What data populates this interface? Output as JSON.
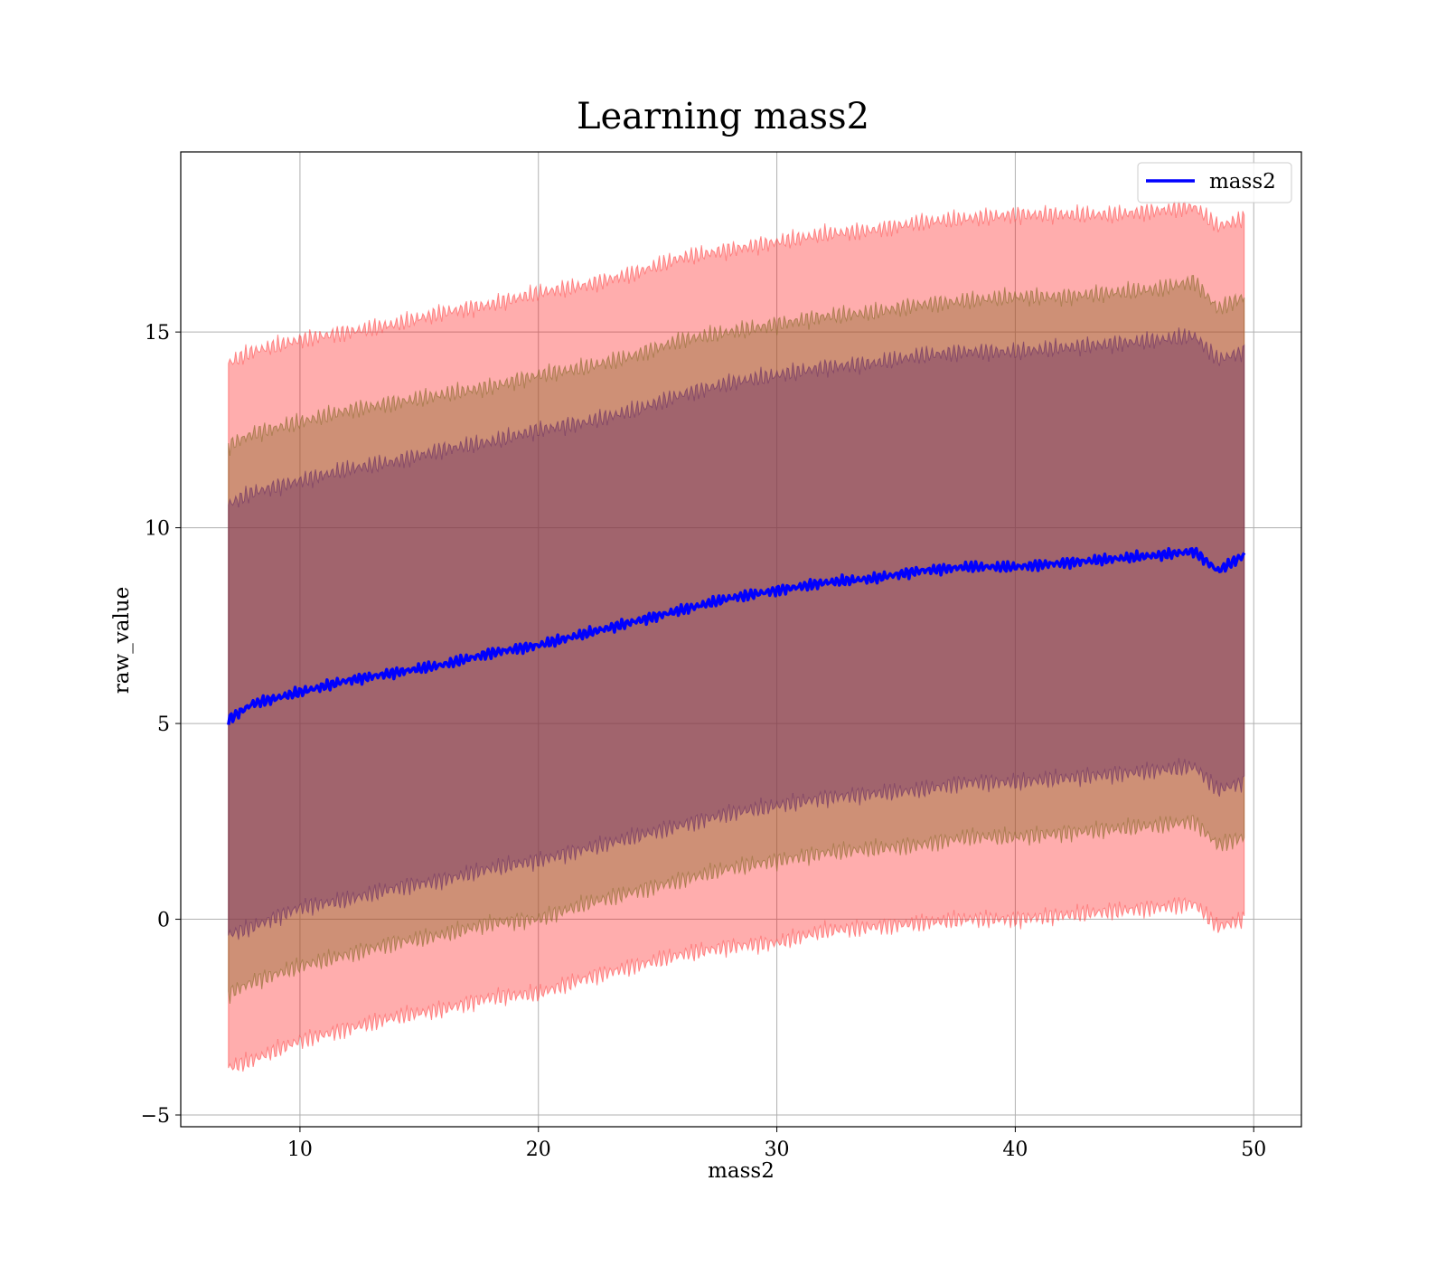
{
  "chart_data": {
    "type": "line",
    "title": "Learning mass2",
    "xlabel": "mass2",
    "ylabel": "raw_value",
    "xlim": [
      5,
      52
    ],
    "ylim": [
      -5.3,
      19.6
    ],
    "xticks": [
      10,
      20,
      30,
      40,
      50
    ],
    "yticks": [
      -5,
      0,
      5,
      10,
      15
    ],
    "xtick_labels": [
      "10",
      "20",
      "30",
      "40",
      "50"
    ],
    "ytick_labels": [
      "−5",
      "0",
      "5",
      "10",
      "15"
    ],
    "grid": true,
    "legend": {
      "placement": "top-right",
      "entries": [
        "mass2"
      ]
    },
    "colors": {
      "mean_line": "#0000ff",
      "band_outer": "#ff0000",
      "band_middle": "#8b6a2b",
      "band_inner": "#6b2f63"
    },
    "series": [
      {
        "name": "mass2",
        "x": [
          7.0,
          8,
          10,
          12,
          14,
          16,
          18,
          20,
          22,
          24,
          26,
          28,
          30,
          32,
          34,
          36,
          38,
          40,
          42,
          44,
          46,
          47.5,
          48.5,
          49.6
        ],
        "y": [
          5.1,
          5.5,
          5.8,
          6.1,
          6.3,
          6.5,
          6.8,
          7.0,
          7.3,
          7.6,
          7.9,
          8.2,
          8.4,
          8.6,
          8.7,
          8.9,
          9.0,
          9.0,
          9.1,
          9.2,
          9.3,
          9.4,
          8.9,
          9.3
        ]
      }
    ],
    "bands": [
      {
        "level": "outer",
        "lower": [
          -3.8,
          -3.6,
          -3.1,
          -2.8,
          -2.5,
          -2.3,
          -2.0,
          -1.9,
          -1.5,
          -1.2,
          -0.9,
          -0.7,
          -0.6,
          -0.3,
          -0.2,
          -0.1,
          0.0,
          0.0,
          0.1,
          0.2,
          0.3,
          0.4,
          -0.2,
          0.0
        ],
        "upper": [
          14.2,
          14.5,
          14.8,
          15.0,
          15.2,
          15.5,
          15.7,
          16.0,
          16.2,
          16.5,
          16.9,
          17.1,
          17.3,
          17.5,
          17.6,
          17.8,
          17.9,
          18.0,
          18.0,
          18.0,
          18.1,
          18.2,
          17.7,
          17.9
        ]
      },
      {
        "level": "middle",
        "lower": [
          -1.9,
          -1.6,
          -1.2,
          -0.9,
          -0.6,
          -0.4,
          -0.1,
          0.0,
          0.4,
          0.7,
          1.0,
          1.3,
          1.5,
          1.7,
          1.8,
          1.9,
          2.1,
          2.1,
          2.2,
          2.3,
          2.4,
          2.5,
          1.9,
          2.1
        ],
        "upper": [
          12.1,
          12.4,
          12.7,
          13.0,
          13.2,
          13.4,
          13.6,
          13.9,
          14.1,
          14.4,
          14.8,
          15.0,
          15.2,
          15.4,
          15.5,
          15.7,
          15.8,
          15.9,
          15.9,
          16.0,
          16.1,
          16.3,
          15.6,
          15.9
        ]
      },
      {
        "level": "inner",
        "lower": [
          -0.4,
          -0.2,
          0.3,
          0.5,
          0.8,
          1.0,
          1.3,
          1.5,
          1.8,
          2.1,
          2.4,
          2.7,
          2.9,
          3.1,
          3.2,
          3.3,
          3.5,
          3.5,
          3.6,
          3.7,
          3.8,
          3.9,
          3.3,
          3.5
        ],
        "upper": [
          10.6,
          10.9,
          11.2,
          11.5,
          11.7,
          12.0,
          12.2,
          12.5,
          12.7,
          13.0,
          13.4,
          13.7,
          13.9,
          14.1,
          14.2,
          14.4,
          14.5,
          14.5,
          14.6,
          14.7,
          14.8,
          14.9,
          14.3,
          14.5
        ]
      }
    ]
  }
}
